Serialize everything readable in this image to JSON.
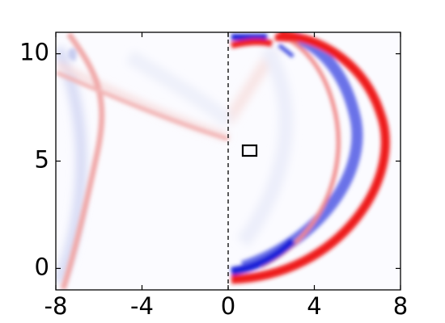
{
  "chart_data": {
    "type": "heatmap",
    "xlim": [
      -8,
      8
    ],
    "xticks": [
      -8,
      -4,
      0,
      4,
      8
    ],
    "ylim": [
      -1,
      11
    ],
    "yticks": [
      0,
      5,
      10
    ]
  }
}
